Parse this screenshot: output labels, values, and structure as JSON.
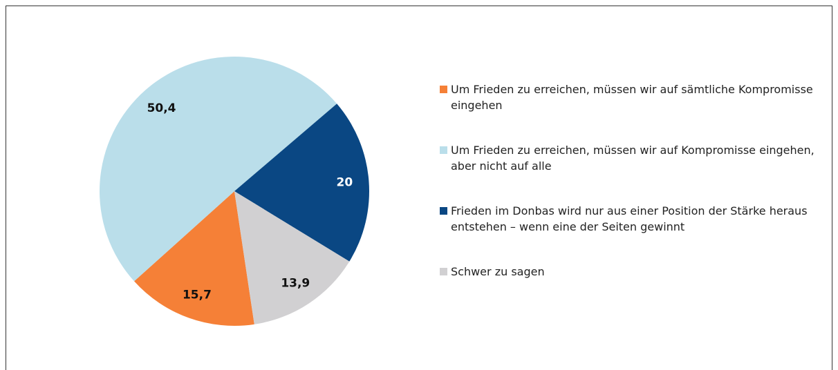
{
  "chart_data": {
    "type": "pie",
    "categories": [
      "Um Frieden zu erreichen, müssen wir auf sämtliche Kompromisse eingehen",
      "Um Frieden zu erreichen, müssen wir auf Kompromisse eingehen, aber nicht auf alle",
      "Frieden im Donbas wird nur aus einer Position der Stärke heraus entstehen – wenn eine der Seiten gewinnt",
      "Schwer zu sagen"
    ],
    "values": [
      15.7,
      50.4,
      20,
      13.9
    ],
    "value_labels": [
      "15,7",
      "50,4",
      "20",
      "13,9"
    ],
    "colors": [
      "#f58037",
      "#badeea",
      "#0a4783",
      "#d1d0d2"
    ],
    "label_colors": [
      "#111111",
      "#111111",
      "#ffffff",
      "#111111"
    ],
    "legend": "right"
  }
}
